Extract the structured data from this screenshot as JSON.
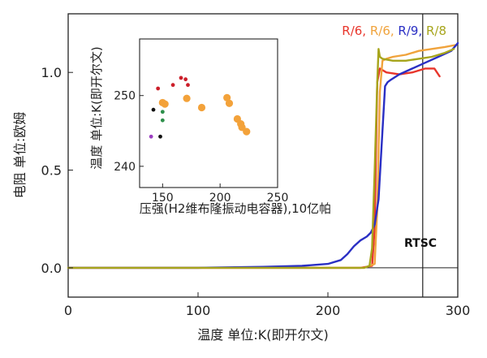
{
  "colors": {
    "R6_red": "#e8352b",
    "R6_orange": "#f0a33c",
    "R9_blue": "#2a2fc4",
    "R8_olive": "#a7a51c",
    "inset_black": "#111111",
    "inset_red": "#cc1f2a",
    "inset_green": "#2d8f4a",
    "inset_purple": "#9b3ec0",
    "inset_orange": "#f3a23a"
  },
  "chart_data": [
    {
      "type": "line",
      "xlabel": "温度 单位:K(即开尔文)",
      "ylabel": "电阻 单位:欧姆",
      "xlim": [
        0,
        300
      ],
      "ylim": [
        -0.15,
        1.3
      ],
      "xticks": [
        0,
        100,
        200,
        300
      ],
      "xtick_labels": [
        "0",
        "100",
        "200",
        "300"
      ],
      "yticks": [
        0.0,
        0.5,
        1.0
      ],
      "ytick_labels": [
        "0.0",
        "0.5",
        "1.0"
      ],
      "hline": 0.0,
      "vline": 273,
      "annotation": "RTSC",
      "legend": {
        "placement": "top-right",
        "entries": [
          {
            "text": "R/6,",
            "color_key": "R6_red"
          },
          {
            "text": "R/6,",
            "color_key": "R6_orange"
          },
          {
            "text": "R/9,",
            "color_key": "R9_blue"
          },
          {
            "text": "R/8",
            "color_key": "R8_olive"
          }
        ]
      },
      "series": [
        {
          "color_key": "R6_red",
          "x": [
            0,
            50,
            100,
            150,
            200,
            225,
            234,
            236,
            237,
            238,
            240,
            245,
            255,
            265,
            275,
            282,
            286
          ],
          "y": [
            0.0,
            0.0,
            0.0,
            0.0,
            0.0,
            0.0,
            0.01,
            0.2,
            0.6,
            0.95,
            1.02,
            1.0,
            0.99,
            1.0,
            1.02,
            1.02,
            0.98
          ]
        },
        {
          "color_key": "R6_orange",
          "x": [
            0,
            100,
            200,
            228,
            236,
            238,
            240,
            242,
            245,
            250,
            260,
            270,
            280,
            290,
            298
          ],
          "y": [
            0.0,
            0.0,
            0.0,
            0.0,
            0.02,
            0.3,
            0.9,
            1.06,
            1.07,
            1.08,
            1.09,
            1.11,
            1.12,
            1.13,
            1.14
          ]
        },
        {
          "color_key": "R9_blue",
          "x": [
            0,
            50,
            100,
            150,
            180,
            200,
            210,
            215,
            220,
            225,
            230,
            233,
            236,
            239,
            242,
            244,
            246,
            248,
            255,
            265,
            275,
            285,
            295,
            300
          ],
          "y": [
            0.0,
            0.0,
            0.0,
            0.005,
            0.01,
            0.02,
            0.04,
            0.07,
            0.11,
            0.14,
            0.16,
            0.18,
            0.22,
            0.35,
            0.7,
            0.93,
            0.95,
            0.96,
            0.99,
            1.02,
            1.05,
            1.08,
            1.11,
            1.15
          ]
        },
        {
          "color_key": "R8_olive",
          "x": [
            0,
            100,
            200,
            228,
            232,
            234,
            236,
            238,
            239,
            240,
            242,
            250,
            260,
            270,
            280,
            290,
            297
          ],
          "y": [
            0.0,
            0.0,
            0.0,
            0.0,
            0.01,
            0.1,
            0.5,
            0.95,
            1.12,
            1.08,
            1.07,
            1.06,
            1.06,
            1.07,
            1.08,
            1.1,
            1.12
          ]
        }
      ]
    },
    {
      "type": "scatter",
      "xlabel": "压强(H2维布隆振动电容器),10亿帕",
      "ylabel": "温度 单位:K(即开尔文)",
      "xlim": [
        130,
        250
      ],
      "ylim": [
        237,
        258
      ],
      "xticks": [
        150,
        200,
        250
      ],
      "xtick_labels": [
        "150",
        "200",
        "250"
      ],
      "yticks": [
        240,
        250
      ],
      "ytick_labels": [
        "240",
        "250"
      ],
      "points": [
        {
          "x": 140,
          "y": 244.2,
          "color_key": "inset_purple",
          "size": "small"
        },
        {
          "x": 148,
          "y": 244.2,
          "color_key": "inset_black",
          "size": "small"
        },
        {
          "x": 142,
          "y": 248.0,
          "color_key": "inset_black",
          "size": "small"
        },
        {
          "x": 150,
          "y": 246.5,
          "color_key": "inset_green",
          "size": "small"
        },
        {
          "x": 150,
          "y": 247.7,
          "color_key": "inset_green",
          "size": "small"
        },
        {
          "x": 146,
          "y": 251.0,
          "color_key": "inset_red",
          "size": "small"
        },
        {
          "x": 159,
          "y": 251.5,
          "color_key": "inset_red",
          "size": "small"
        },
        {
          "x": 166,
          "y": 252.5,
          "color_key": "inset_red",
          "size": "small"
        },
        {
          "x": 170,
          "y": 252.3,
          "color_key": "inset_red",
          "size": "small"
        },
        {
          "x": 172,
          "y": 251.5,
          "color_key": "inset_red",
          "size": "small"
        },
        {
          "x": 150,
          "y": 249.0,
          "color_key": "inset_orange",
          "size": "large"
        },
        {
          "x": 152,
          "y": 248.8,
          "color_key": "inset_orange",
          "size": "large"
        },
        {
          "x": 171,
          "y": 249.6,
          "color_key": "inset_orange",
          "size": "large"
        },
        {
          "x": 184,
          "y": 248.3,
          "color_key": "inset_orange",
          "size": "large"
        },
        {
          "x": 206,
          "y": 249.7,
          "color_key": "inset_orange",
          "size": "large"
        },
        {
          "x": 208,
          "y": 248.9,
          "color_key": "inset_orange",
          "size": "large"
        },
        {
          "x": 215,
          "y": 246.7,
          "color_key": "inset_orange",
          "size": "large"
        },
        {
          "x": 218,
          "y": 246.0,
          "color_key": "inset_orange",
          "size": "large"
        },
        {
          "x": 219,
          "y": 245.5,
          "color_key": "inset_orange",
          "size": "large"
        },
        {
          "x": 223,
          "y": 244.9,
          "color_key": "inset_orange",
          "size": "large"
        }
      ]
    }
  ]
}
